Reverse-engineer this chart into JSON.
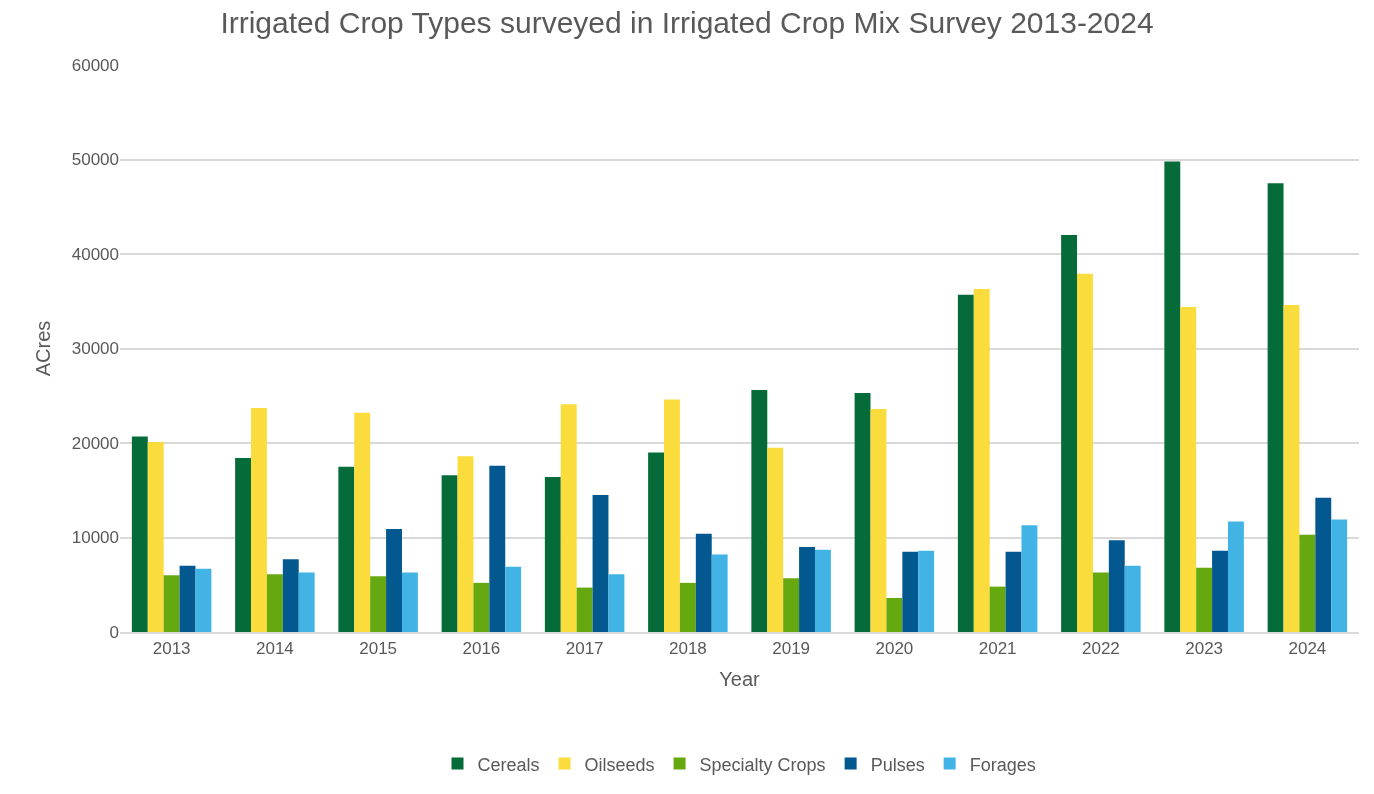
{
  "chart_data": {
    "type": "bar",
    "title": "Irrigated Crop Types surveyed in Irrigated Crop Mix Survey 2013-2024",
    "xlabel": "Year",
    "ylabel": "ACres",
    "categories": [
      "2013",
      "2014",
      "2015",
      "2016",
      "2017",
      "2018",
      "2019",
      "2020",
      "2021",
      "2022",
      "2023",
      "2024"
    ],
    "series": [
      {
        "name": "Cereals",
        "color": "#056b38",
        "values": [
          20700,
          18400,
          17500,
          16600,
          16400,
          19000,
          25600,
          25300,
          35700,
          42000,
          49800,
          47500
        ]
      },
      {
        "name": "Oilseeds",
        "color": "#fadc3c",
        "values": [
          20100,
          23700,
          23200,
          18600,
          24100,
          24600,
          19500,
          23600,
          36300,
          37900,
          34400,
          34600
        ]
      },
      {
        "name": "Specialty Crops",
        "color": "#66a80f",
        "values": [
          6000,
          6100,
          5900,
          5200,
          4700,
          5200,
          5700,
          3600,
          4800,
          6300,
          6800,
          10300
        ]
      },
      {
        "name": "Pulses",
        "color": "#03588f",
        "values": [
          7000,
          7700,
          10900,
          17600,
          14500,
          10400,
          9000,
          8500,
          8500,
          9700,
          8600,
          14200
        ]
      },
      {
        "name": "Forages",
        "color": "#41b4e5",
        "values": [
          6700,
          6300,
          6300,
          6900,
          6100,
          8200,
          8700,
          8600,
          11300,
          7000,
          11700,
          11900
        ]
      }
    ],
    "ylim": [
      0,
      60000
    ],
    "yticks": [
      0,
      10000,
      20000,
      30000,
      40000,
      50000,
      60000
    ],
    "grid": "y",
    "legend": "bottom"
  }
}
